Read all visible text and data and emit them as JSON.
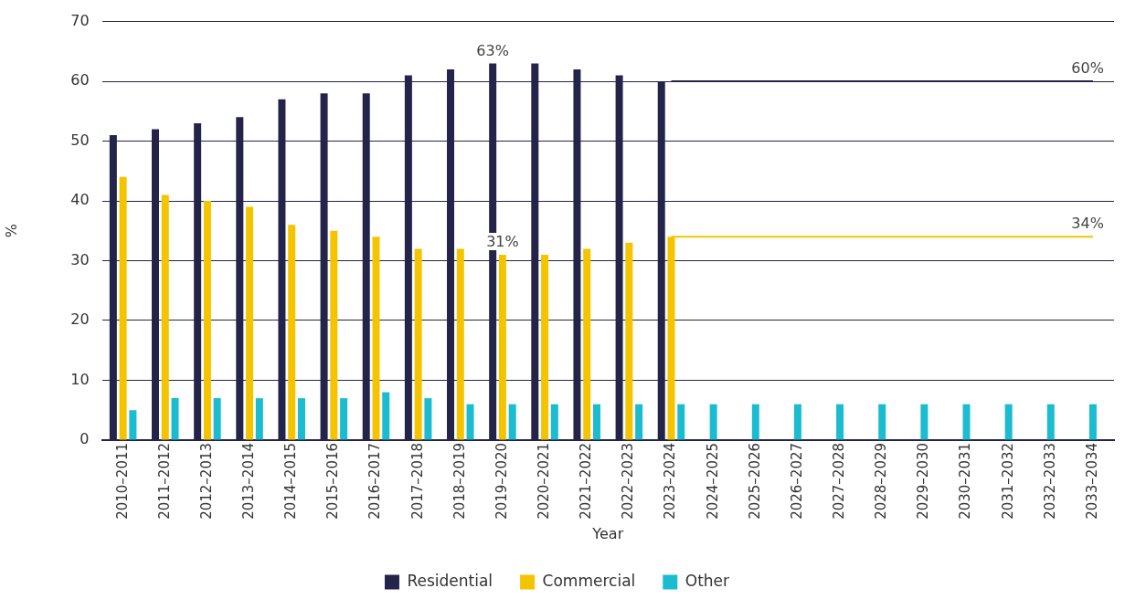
{
  "chart_data": {
    "type": "bar",
    "xlabel": "Year",
    "ylabel": "%",
    "categories": [
      "2010–2011",
      "2011–2012",
      "2012–2013",
      "2013–2014",
      "2014–2015",
      "2015–2016",
      "2016–2017",
      "2017–2018",
      "2018–2019",
      "2019–2020",
      "2020–2021",
      "2021–2022",
      "2022–2023",
      "2023–2024",
      "2024–2025",
      "2025–2026",
      "2026–2027",
      "2027–2028",
      "2028–2029",
      "2029–2030",
      "2030–2031",
      "2031–2032",
      "2032–2033",
      "2033–2034"
    ],
    "series": [
      {
        "name": "Residential",
        "color": "#24244a",
        "values": [
          51,
          52,
          53,
          54,
          57,
          58,
          58,
          61,
          62,
          63,
          63,
          62,
          61,
          60,
          null,
          null,
          null,
          null,
          null,
          null,
          null,
          null,
          null,
          null
        ],
        "value_labels": [
          null,
          null,
          null,
          null,
          null,
          null,
          null,
          null,
          null,
          "63%",
          null,
          null,
          null,
          null,
          null,
          null,
          null,
          null,
          null,
          null,
          null,
          null,
          null,
          null
        ]
      },
      {
        "name": "Commercial",
        "color": "#f5c400",
        "values": [
          44,
          41,
          40,
          39,
          36,
          35,
          34,
          32,
          32,
          31,
          31,
          32,
          33,
          34,
          null,
          null,
          null,
          null,
          null,
          null,
          null,
          null,
          null,
          null
        ],
        "value_labels": [
          null,
          null,
          null,
          null,
          null,
          null,
          null,
          null,
          null,
          "31%",
          null,
          null,
          null,
          null,
          null,
          null,
          null,
          null,
          null,
          null,
          null,
          null,
          null,
          null
        ]
      },
      {
        "name": "Other",
        "color": "#1bbcd0",
        "values": [
          5,
          7,
          7,
          7,
          7,
          7,
          8,
          7,
          6,
          6,
          6,
          6,
          6,
          6,
          6,
          6,
          6,
          6,
          6,
          6,
          6,
          6,
          6,
          6
        ]
      },
      {
        "type": "line",
        "color": "#24244a",
        "values": [
          null,
          null,
          null,
          null,
          null,
          null,
          null,
          null,
          null,
          null,
          null,
          null,
          null,
          60,
          60,
          60,
          60,
          60,
          60,
          60,
          60,
          60,
          60,
          60
        ],
        "value_labels": [
          null,
          null,
          null,
          null,
          null,
          null,
          null,
          null,
          null,
          null,
          null,
          null,
          null,
          null,
          null,
          null,
          null,
          null,
          null,
          null,
          null,
          null,
          null,
          "60%"
        ]
      },
      {
        "type": "line",
        "color": "#f5c400",
        "values": [
          null,
          null,
          null,
          null,
          null,
          null,
          null,
          null,
          null,
          null,
          null,
          null,
          null,
          34,
          34,
          34,
          34,
          34,
          34,
          34,
          34,
          34,
          34,
          34
        ],
        "value_labels": [
          null,
          null,
          null,
          null,
          null,
          null,
          null,
          null,
          null,
          null,
          null,
          null,
          null,
          null,
          null,
          null,
          null,
          null,
          null,
          null,
          null,
          null,
          null,
          "34%"
        ]
      }
    ],
    "ylim": [
      0,
      70
    ],
    "yticks": [
      0,
      10,
      20,
      30,
      40,
      50,
      60,
      70
    ],
    "grid": "y",
    "legend": "bottom"
  }
}
